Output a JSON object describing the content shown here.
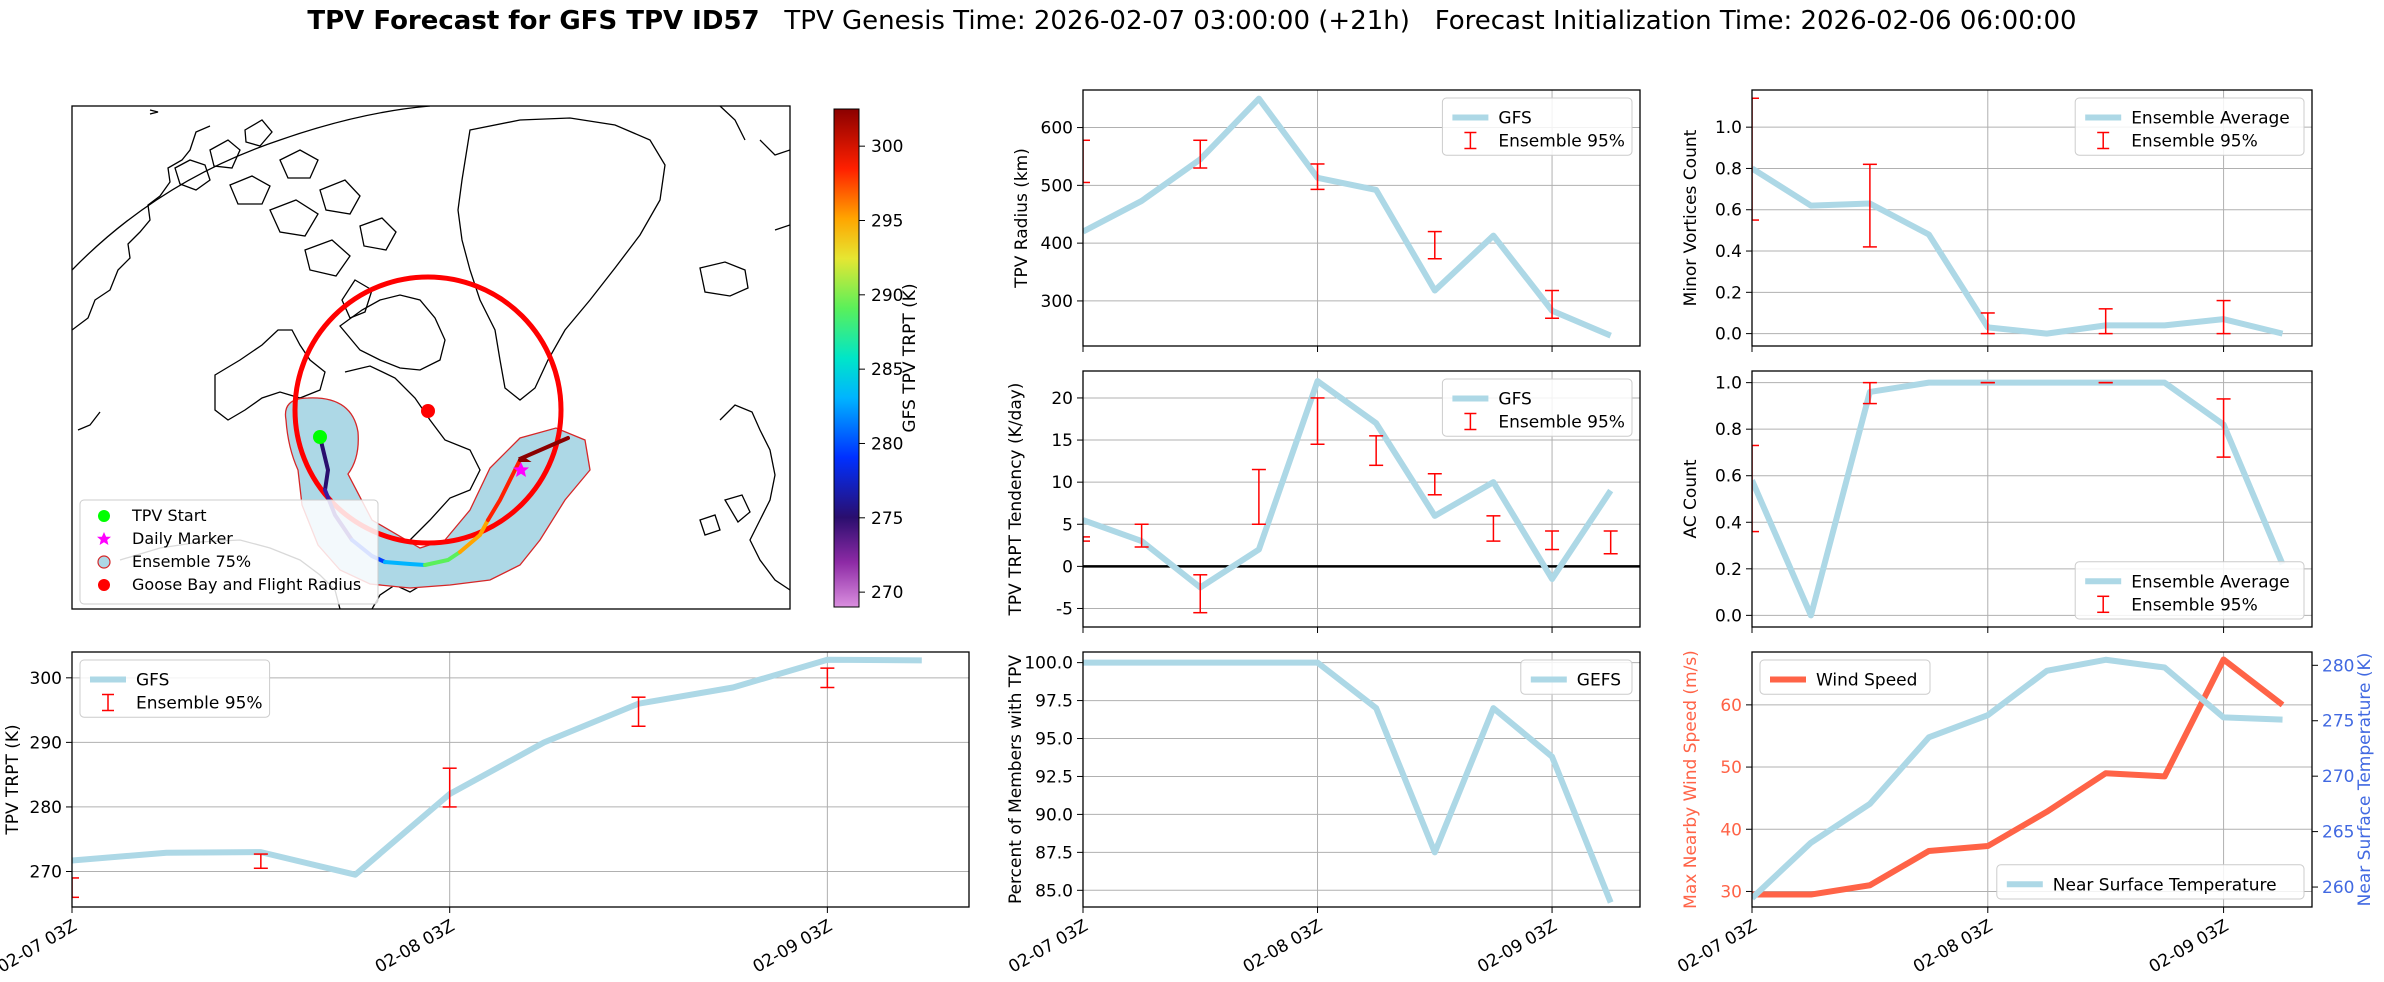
{
  "figure": {
    "title_bold": "TPV Forecast for GFS TPV ID57",
    "title_rest": "TPV Genesis Time: 2026-02-07 03:00:00 (+21h)   Forecast Initialization Time: 2026-02-06 06:00:00"
  },
  "colors": {
    "light_blue": "#add8e6",
    "error_red": "#ff0000",
    "wind": "#ff6347",
    "temp_axis": "#4169e1",
    "grid": "#b0b0b0"
  },
  "time_ticks": [
    "02-07 03Z",
    "02-08 03Z",
    "02-09 03Z"
  ],
  "map": {
    "colorbar": {
      "label": "GFS TPV TRPT (K)",
      "ticks": [
        270,
        275,
        280,
        285,
        290,
        295,
        300
      ],
      "range": [
        269,
        302.5
      ],
      "colormap": "rainbow (magenta-purple-blue-cyan-green-yellow-orange-red-darkred)"
    },
    "legend": [
      {
        "label": "TPV Start",
        "marker": "green-circle"
      },
      {
        "label": "Daily Marker",
        "marker": "magenta-star"
      },
      {
        "label": "Ensemble 75%",
        "marker": "lightblue-circle-red-edge"
      },
      {
        "label": "Goose Bay and Flight Radius",
        "marker": "red-circle"
      }
    ]
  },
  "chart_data": [
    {
      "id": "radius",
      "type": "line",
      "ylabel": "TPV Radius (km)",
      "ylim": [
        222,
        665
      ],
      "yticks": [
        300,
        400,
        500,
        600
      ],
      "grid": true,
      "legend": "upper-right",
      "series": [
        {
          "name": "GFS",
          "color": "light_blue",
          "x": [
            0,
            6,
            12,
            18,
            24,
            30,
            36,
            42,
            48,
            54
          ],
          "values": [
            420,
            473,
            545,
            650,
            513,
            492,
            318,
            413,
            283,
            240
          ]
        },
        {
          "name": "Ensemble 95%",
          "kind": "errorbar",
          "x": [
            0,
            12,
            24,
            36,
            48
          ],
          "low": [
            505,
            530,
            493,
            373,
            270
          ],
          "high": [
            578,
            578,
            537,
            420,
            318
          ]
        }
      ]
    },
    {
      "id": "minor",
      "type": "line",
      "ylabel": "Minor Vortices Count",
      "ylim": [
        -0.06,
        1.18
      ],
      "yticks": [
        0.0,
        0.2,
        0.4,
        0.6,
        0.8,
        1.0
      ],
      "grid": true,
      "legend": "upper-right",
      "series": [
        {
          "name": "Ensemble Average",
          "color": "light_blue",
          "x": [
            0,
            6,
            12,
            18,
            24,
            30,
            36,
            42,
            48,
            54
          ],
          "values": [
            0.8,
            0.62,
            0.63,
            0.48,
            0.03,
            0.0,
            0.04,
            0.04,
            0.07,
            0.0
          ]
        },
        {
          "name": "Ensemble 95%",
          "kind": "errorbar",
          "x": [
            0,
            12,
            24,
            36,
            48
          ],
          "low": [
            0.55,
            0.42,
            0.0,
            0.0,
            0.0
          ],
          "high": [
            1.14,
            0.82,
            0.1,
            0.12,
            0.16
          ]
        }
      ]
    },
    {
      "id": "tendency",
      "type": "line",
      "ylabel": "TPV TRPT Tendency (K/day)",
      "ylim": [
        -7.2,
        23.2
      ],
      "yticks": [
        -5,
        0,
        5,
        10,
        15,
        20
      ],
      "zero_line": true,
      "grid": true,
      "legend": "upper-right",
      "series": [
        {
          "name": "GFS",
          "color": "light_blue",
          "x": [
            0,
            6,
            12,
            18,
            24,
            30,
            36,
            42,
            48,
            54
          ],
          "values": [
            5.5,
            3.0,
            -2.5,
            2.0,
            22.0,
            17.0,
            6.0,
            10.0,
            -1.5,
            9.0
          ]
        },
        {
          "name": "Ensemble 95%",
          "kind": "errorbar",
          "x": [
            0,
            6,
            12,
            18,
            24,
            30,
            36,
            42,
            48,
            54
          ],
          "low": [
            3.0,
            2.3,
            -5.5,
            5.0,
            14.5,
            12.0,
            8.5,
            3.0,
            2.0,
            1.5
          ],
          "high": [
            3.5,
            5.0,
            -1.0,
            11.5,
            20.0,
            15.5,
            11.0,
            6.0,
            4.2,
            4.2
          ]
        }
      ]
    },
    {
      "id": "ac",
      "type": "line",
      "ylabel": "AC Count",
      "ylim": [
        -0.05,
        1.05
      ],
      "yticks": [
        0.0,
        0.2,
        0.4,
        0.6,
        0.8,
        1.0
      ],
      "grid": true,
      "legend": "lower-right",
      "series": [
        {
          "name": "Ensemble Average",
          "color": "light_blue",
          "x": [
            0,
            6,
            12,
            18,
            24,
            30,
            36,
            42,
            48,
            54
          ],
          "values": [
            0.58,
            0.0,
            0.96,
            1.0,
            1.0,
            1.0,
            1.0,
            1.0,
            0.82,
            0.22
          ]
        },
        {
          "name": "Ensemble 95%",
          "kind": "errorbar",
          "x": [
            0,
            12,
            24,
            36,
            48
          ],
          "low": [
            0.36,
            0.91,
            1.0,
            1.0,
            0.68
          ],
          "high": [
            0.73,
            1.0,
            1.0,
            1.0,
            0.93
          ]
        }
      ]
    },
    {
      "id": "trpt",
      "type": "line",
      "ylabel": "TPV TRPT (K)",
      "ylim": [
        264.5,
        304
      ],
      "yticks": [
        270,
        280,
        290,
        300
      ],
      "grid": true,
      "legend": "upper-left",
      "series": [
        {
          "name": "GFS",
          "color": "light_blue",
          "x": [
            0,
            6,
            12,
            18,
            24,
            30,
            36,
            42,
            48,
            54
          ],
          "values": [
            271.7,
            272.9,
            273.0,
            269.5,
            282.0,
            290.0,
            296.0,
            298.5,
            302.8,
            302.7
          ]
        },
        {
          "name": "Ensemble 95%",
          "kind": "errorbar",
          "x": [
            0,
            12,
            24,
            36,
            48
          ],
          "low": [
            266.0,
            270.5,
            280.0,
            292.5,
            298.5
          ],
          "high": [
            269.0,
            272.7,
            286.0,
            297.0,
            301.5
          ]
        }
      ]
    },
    {
      "id": "members",
      "type": "line",
      "ylabel": "Percent of Members with TPV",
      "ylim": [
        83.9,
        100.7
      ],
      "yticks": [
        85.0,
        87.5,
        90.0,
        92.5,
        95.0,
        97.5,
        100.0
      ],
      "grid": true,
      "legend": "upper-right",
      "series": [
        {
          "name": "GEFS",
          "color": "light_blue",
          "x": [
            0,
            6,
            12,
            18,
            24,
            30,
            36,
            42,
            48,
            54
          ],
          "values": [
            100.0,
            100.0,
            100.0,
            100.0,
            100.0,
            97.0,
            87.5,
            97.0,
            93.8,
            84.2
          ]
        }
      ]
    },
    {
      "id": "wind_temp",
      "type": "line",
      "ylabel": "Max Nearby Wind Speed (m/s)",
      "ylim": [
        27.5,
        68.5
      ],
      "yticks": [
        30,
        40,
        50,
        60
      ],
      "y2label": "Near Surface Temperature (K)",
      "y2lim": [
        258.2,
        281.2
      ],
      "y2ticks": [
        260,
        265,
        270,
        275,
        280
      ],
      "grid": true,
      "series": [
        {
          "name": "Wind Speed",
          "axis": "left",
          "color": "wind",
          "legend": "upper-left",
          "x": [
            0,
            6,
            12,
            18,
            24,
            30,
            36,
            42,
            48,
            54
          ],
          "values": [
            29.5,
            29.5,
            31.0,
            36.5,
            37.3,
            42.8,
            49.0,
            48.5,
            67.3,
            60.0
          ]
        },
        {
          "name": "Near Surface Temperature",
          "axis": "right",
          "color": "light_blue",
          "legend": "lower-right",
          "x": [
            0,
            6,
            12,
            18,
            24,
            30,
            36,
            42,
            48,
            54
          ],
          "values": [
            259.0,
            264.0,
            267.5,
            273.5,
            275.5,
            279.5,
            280.5,
            279.8,
            275.3,
            275.1
          ]
        }
      ]
    }
  ]
}
